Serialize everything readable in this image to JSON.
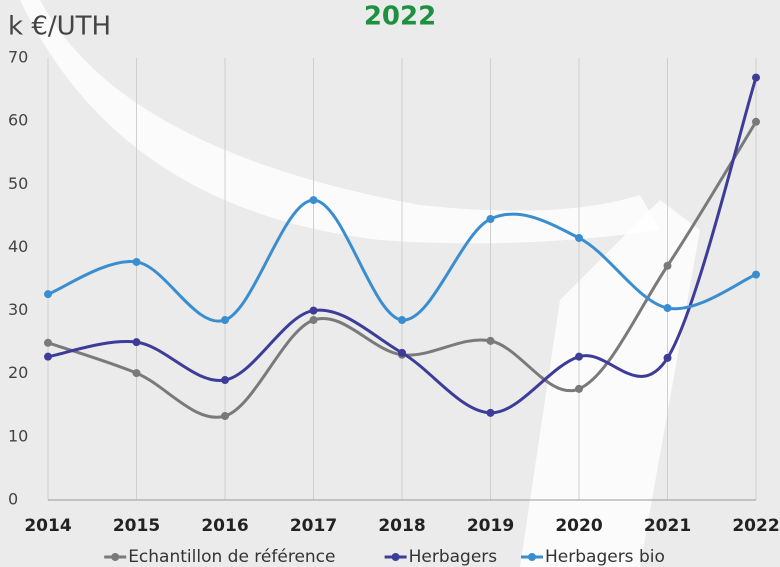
{
  "chart_data": {
    "type": "line",
    "title": "2022",
    "y_label": "k €/UTH",
    "categories": [
      "2014",
      "2015",
      "2016",
      "2017",
      "2018",
      "2019",
      "2020",
      "2021",
      "2022"
    ],
    "series": [
      {
        "name": "Echantillon de référence",
        "color": "#7a7a7a",
        "values": [
          24.9,
          20.1,
          13.3,
          28.5,
          23,
          25.2,
          17.6,
          37.1,
          59.9
        ]
      },
      {
        "name": "Herbagers",
        "color": "#3d3d99",
        "values": [
          22.7,
          25,
          19,
          30,
          23.3,
          13.8,
          22.7,
          22.5,
          66.9
        ]
      },
      {
        "name": "Herbagers bio",
        "color": "#3a8ed0",
        "values": [
          32.6,
          37.7,
          28.5,
          47.5,
          28.5,
          44.5,
          41.5,
          30.4,
          35.7
        ]
      }
    ],
    "ylim": [
      0,
      70
    ],
    "yticks": [
      0,
      10,
      20,
      30,
      40,
      50,
      60,
      70
    ],
    "grid": true,
    "smooth": true,
    "legend": "bottom"
  }
}
